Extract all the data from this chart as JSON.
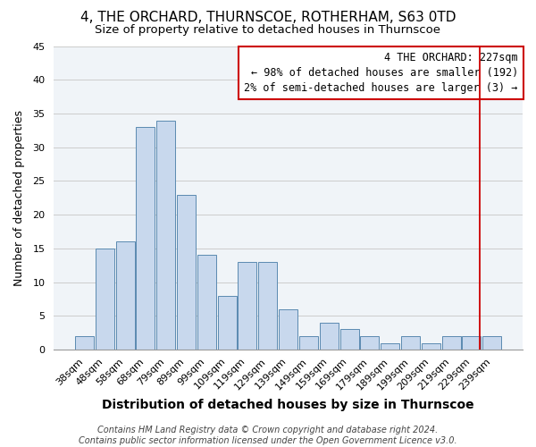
{
  "title": "4, THE ORCHARD, THURNSCOE, ROTHERHAM, S63 0TD",
  "subtitle": "Size of property relative to detached houses in Thurnscoe",
  "xlabel": "Distribution of detached houses by size in Thurnscoe",
  "ylabel": "Number of detached properties",
  "bar_color": "#c8d8ed",
  "bar_edge_color": "#5a8ab0",
  "grid_color": "#cccccc",
  "categories": [
    "38sqm",
    "48sqm",
    "58sqm",
    "68sqm",
    "79sqm",
    "89sqm",
    "99sqm",
    "109sqm",
    "119sqm",
    "129sqm",
    "139sqm",
    "149sqm",
    "159sqm",
    "169sqm",
    "179sqm",
    "189sqm",
    "199sqm",
    "209sqm",
    "219sqm",
    "229sqm",
    "239sqm"
  ],
  "values": [
    2,
    15,
    16,
    33,
    34,
    23,
    14,
    8,
    13,
    13,
    6,
    2,
    4,
    3,
    2,
    1,
    2,
    1,
    2,
    2,
    2
  ],
  "ylim": [
    0,
    45
  ],
  "yticks": [
    0,
    5,
    10,
    15,
    20,
    25,
    30,
    35,
    40,
    45
  ],
  "annotation_line_color": "#cc0000",
  "annotation_box_text": "4 THE ORCHARD: 227sqm\n← 98% of detached houses are smaller (192)\n2% of semi-detached houses are larger (3) →",
  "footer_line1": "Contains HM Land Registry data © Crown copyright and database right 2024.",
  "footer_line2": "Contains public sector information licensed under the Open Government Licence v3.0.",
  "title_fontsize": 11,
  "subtitle_fontsize": 9.5,
  "xlabel_fontsize": 10,
  "ylabel_fontsize": 9,
  "tick_fontsize": 8,
  "annotation_fontsize": 8.5,
  "footer_fontsize": 7,
  "background_color": "#f0f4f8"
}
